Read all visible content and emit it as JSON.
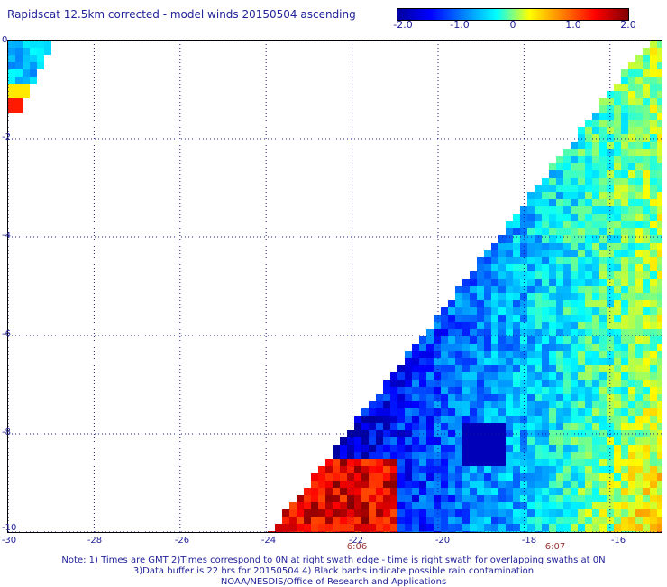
{
  "title": "Rapidscat 12.5km corrected - model winds 20150504 ascending",
  "colorbar": {
    "ticks": [
      "-2.0",
      "-1.0",
      "0",
      "1.0",
      "2.0"
    ],
    "range": [
      -2.0,
      2.0
    ],
    "colors": [
      "#0000a0",
      "#0000ff",
      "#0080ff",
      "#00ffff",
      "#ffff00",
      "#ff8000",
      "#ff0000",
      "#800000"
    ]
  },
  "map": {
    "lon_ticks": [
      "-30",
      "-28",
      "-26",
      "-24",
      "-22",
      "-20",
      "-18",
      "-16"
    ],
    "lat_ticks": [
      "0",
      "-2",
      "-4",
      "-6",
      "-8",
      "-10"
    ],
    "lon_range": [
      -30,
      -14.8
    ],
    "lat_range": [
      -10,
      0
    ],
    "grid": "dotted",
    "time_labels": [
      {
        "text": "6:06",
        "lon": -22
      },
      {
        "text": "6:07",
        "lon": -17.3
      }
    ]
  },
  "notes": {
    "line1": "Note: 1) Times are GMT 2)Times correspond to 0N at right swath edge - time is right swath for overlapping swaths at 0N",
    "line2": "3)Data buffer is 22 hrs for 20150504 4) Black barbs indicate possible rain contamination",
    "line3": "NOAA/NESDIS/Office of Research and Applications"
  }
}
